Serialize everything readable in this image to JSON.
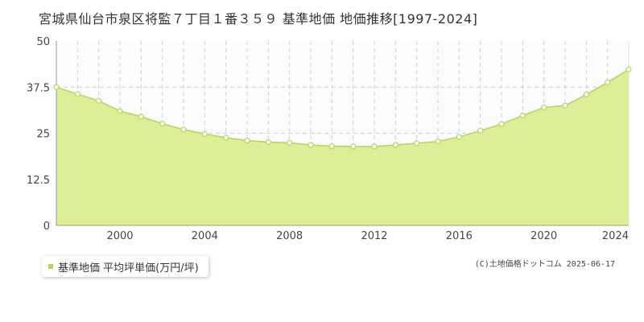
{
  "chart_data": {
    "type": "area",
    "title": "宮城県仙台市泉区将監７丁目１番３５９ 基準地価 地価推移[1997-2024]",
    "xlabel": "",
    "ylabel": "",
    "xlim": [
      1997,
      2024
    ],
    "ylim": [
      0,
      50
    ],
    "y_ticks": [
      "0",
      "12.5",
      "25",
      "37.5",
      "50"
    ],
    "x_ticks": [
      "2000",
      "2004",
      "2008",
      "2012",
      "2016",
      "2020",
      "2024"
    ],
    "grid": true,
    "legend_position": "bottom-left",
    "series": [
      {
        "name": "基準地価 平均坪単価(万円/坪)",
        "color": "#b5d84a",
        "fill": "#dcee97",
        "x": [
          1997,
          1998,
          1999,
          2000,
          2001,
          2002,
          2003,
          2004,
          2005,
          2006,
          2007,
          2008,
          2009,
          2010,
          2011,
          2012,
          2013,
          2014,
          2015,
          2016,
          2017,
          2018,
          2019,
          2020,
          2021,
          2022,
          2023,
          2024
        ],
        "values": [
          37.5,
          35.6,
          33.8,
          31.0,
          29.5,
          27.6,
          26.0,
          24.8,
          23.8,
          23.0,
          22.6,
          22.4,
          21.8,
          21.5,
          21.4,
          21.4,
          21.8,
          22.3,
          22.8,
          24.0,
          25.7,
          27.5,
          29.8,
          32.0,
          32.5,
          35.5,
          38.8,
          42.3
        ]
      }
    ]
  },
  "legend": {
    "label": "基準地価 平均坪単価(万円/坪)"
  },
  "copyright": "(C)土地価格ドットコム 2025-06-17"
}
